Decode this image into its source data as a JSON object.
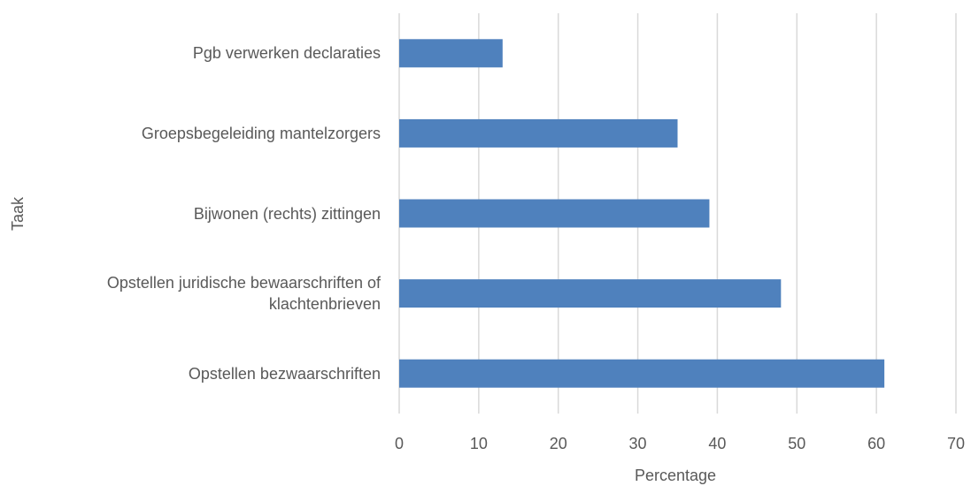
{
  "chart_data": {
    "type": "bar",
    "orientation": "horizontal",
    "x_label": "Percentage",
    "y_label": "Taak",
    "categories": [
      "Pgb verwerken declaraties",
      "Groepsbegeleiding mantelzorgers",
      "Bijwonen (rechts) zittingen",
      "Opstellen juridische bewaarschriften of klachtenbrieven",
      "Opstellen bezwaarschriften"
    ],
    "values": [
      13,
      35,
      39,
      48,
      61
    ],
    "color": "#4f81bd",
    "xlim": [
      0,
      70
    ],
    "xticks": [
      0,
      10,
      20,
      30,
      40,
      50,
      60,
      70
    ],
    "grid": true
  }
}
